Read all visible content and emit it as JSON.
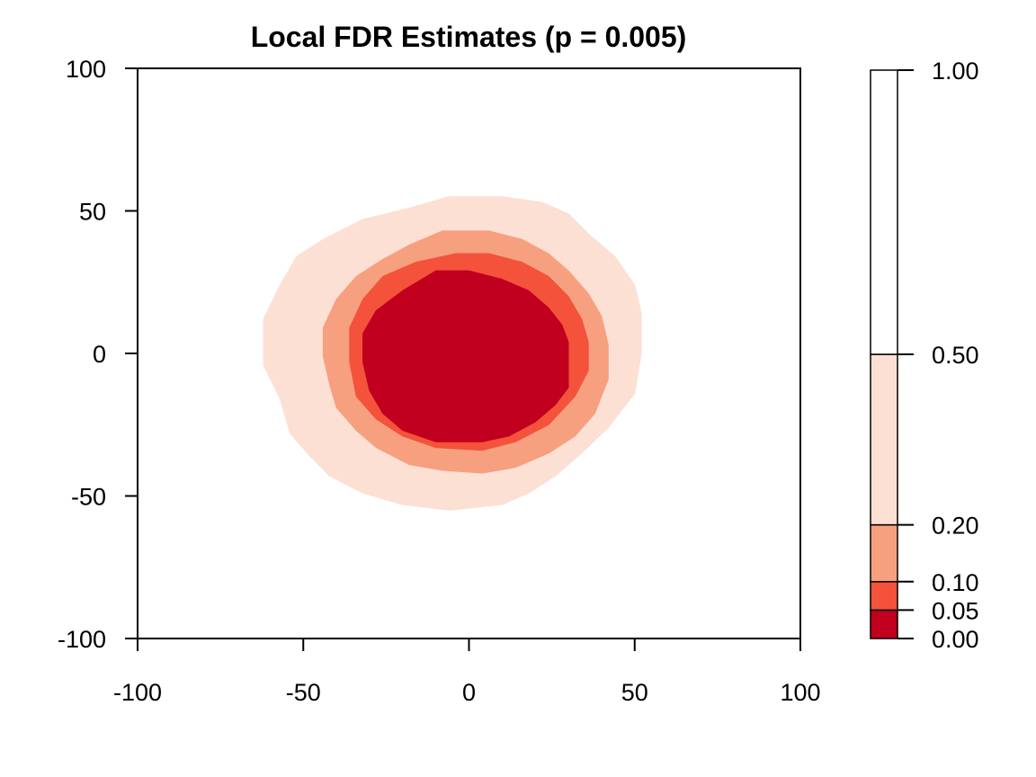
{
  "chart_data": {
    "type": "heatmap",
    "title": "Local FDR Estimates (p = 0.005)",
    "xlabel": "",
    "ylabel": "",
    "xlim": [
      -100,
      100
    ],
    "ylim": [
      -100,
      100
    ],
    "x_ticks": [
      "-100",
      "-50",
      "0",
      "50",
      "100"
    ],
    "y_ticks": [
      "100",
      "50",
      "0",
      "-50",
      "-100"
    ],
    "colorbar": {
      "breaks": [
        0.0,
        0.05,
        0.1,
        0.2,
        0.5,
        1.0
      ],
      "tick_labels": [
        "1.00",
        "0.50",
        "0.20",
        "0.10",
        "0.05",
        "0.00"
      ],
      "colors": [
        "#c0001e",
        "#f4523b",
        "#f7a080",
        "#fce0d4",
        "#ffffff"
      ]
    },
    "regions": [
      {
        "fdr_range": [
          0.2,
          0.5
        ],
        "color": "#fce0d4",
        "boundary": [
          [
            -6,
            55
          ],
          [
            10,
            55
          ],
          [
            22,
            53
          ],
          [
            30,
            49
          ],
          [
            36,
            42
          ],
          [
            44,
            34
          ],
          [
            50,
            24
          ],
          [
            52,
            14
          ],
          [
            52,
            0
          ],
          [
            50,
            -14
          ],
          [
            42,
            -26
          ],
          [
            34,
            -35
          ],
          [
            26,
            -43
          ],
          [
            18,
            -49
          ],
          [
            10,
            -53
          ],
          [
            -6,
            -55
          ],
          [
            -20,
            -53
          ],
          [
            -32,
            -49
          ],
          [
            -42,
            -43
          ],
          [
            -48,
            -36
          ],
          [
            -54,
            -28
          ],
          [
            -57,
            -16
          ],
          [
            -62,
            -4
          ],
          [
            -62,
            12
          ],
          [
            -57,
            24
          ],
          [
            -52,
            34
          ],
          [
            -44,
            40
          ],
          [
            -32,
            47
          ],
          [
            -18,
            51
          ]
        ]
      },
      {
        "fdr_range": [
          0.1,
          0.2
        ],
        "color": "#f7a080",
        "boundary": [
          [
            -8,
            43
          ],
          [
            6,
            43
          ],
          [
            16,
            40
          ],
          [
            24,
            35
          ],
          [
            30,
            29
          ],
          [
            36,
            21
          ],
          [
            40,
            13
          ],
          [
            42,
            3
          ],
          [
            42,
            -9
          ],
          [
            38,
            -21
          ],
          [
            32,
            -29
          ],
          [
            24,
            -35
          ],
          [
            14,
            -40
          ],
          [
            4,
            -42
          ],
          [
            -8,
            -41
          ],
          [
            -18,
            -39
          ],
          [
            -28,
            -33
          ],
          [
            -34,
            -27
          ],
          [
            -40,
            -19
          ],
          [
            -42,
            -11
          ],
          [
            -44,
            -1
          ],
          [
            -44,
            9
          ],
          [
            -40,
            19
          ],
          [
            -34,
            27
          ],
          [
            -26,
            33
          ],
          [
            -18,
            38
          ]
        ]
      },
      {
        "fdr_range": [
          0.05,
          0.1
        ],
        "color": "#f4523b",
        "boundary": [
          [
            -4,
            35
          ],
          [
            6,
            35
          ],
          [
            16,
            32
          ],
          [
            24,
            27
          ],
          [
            30,
            20
          ],
          [
            34,
            12
          ],
          [
            36,
            4
          ],
          [
            36,
            -6
          ],
          [
            32,
            -15
          ],
          [
            24,
            -25
          ],
          [
            14,
            -31
          ],
          [
            4,
            -34
          ],
          [
            -10,
            -33
          ],
          [
            -20,
            -29
          ],
          [
            -28,
            -23
          ],
          [
            -34,
            -15
          ],
          [
            -36,
            -3
          ],
          [
            -36,
            9
          ],
          [
            -32,
            19
          ],
          [
            -26,
            27
          ],
          [
            -16,
            32
          ]
        ]
      },
      {
        "fdr_range": [
          0.0,
          0.05
        ],
        "color": "#c0001e",
        "boundary": [
          [
            -10,
            29
          ],
          [
            0,
            29
          ],
          [
            10,
            26
          ],
          [
            18,
            22
          ],
          [
            24,
            16
          ],
          [
            28,
            10
          ],
          [
            30,
            4
          ],
          [
            30,
            -12
          ],
          [
            26,
            -18
          ],
          [
            20,
            -24
          ],
          [
            12,
            -29
          ],
          [
            4,
            -31
          ],
          [
            -10,
            -31
          ],
          [
            -20,
            -27
          ],
          [
            -26,
            -21
          ],
          [
            -30,
            -13
          ],
          [
            -32,
            -3
          ],
          [
            -32,
            7
          ],
          [
            -28,
            15
          ],
          [
            -20,
            22
          ]
        ]
      }
    ],
    "grid": false,
    "legend": "right"
  }
}
